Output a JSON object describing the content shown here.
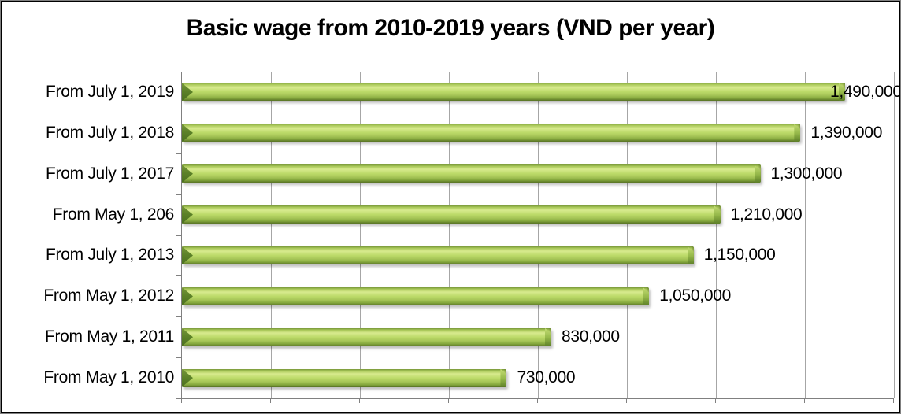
{
  "chart_data": {
    "type": "bar",
    "orientation": "horizontal",
    "title": "Basic wage from 2010-2019 years (VND per year)",
    "categories": [
      "From July 1, 2019",
      "From July 1, 2018",
      "From July 1, 2017",
      "From May 1, 206",
      "From July 1, 2013",
      "From May 1, 2012",
      "From May 1, 2011",
      "From May 1, 2010"
    ],
    "values": [
      1490000,
      1390000,
      1300000,
      1210000,
      1150000,
      1050000,
      830000,
      730000
    ],
    "value_labels": [
      "1,490,000",
      "1,390,000",
      "1,300,000",
      "1,210,000",
      "1,150,000",
      "1,050,000",
      "830,000",
      "730,000"
    ],
    "xlabel": "",
    "ylabel": "",
    "xlim": [
      0,
      1600000
    ],
    "grid_interval": 200000,
    "grid": true,
    "legend": false,
    "data_labels": true,
    "colors": {
      "bar_top": "#7b9a3c",
      "bar_main": "#a9c859",
      "bar_highlight": "#d8ea8e",
      "bar_mid": "#bcda69",
      "bar_shade": "#85a83e",
      "bar_dark": "#647f2d",
      "bar_cap": "#4b7020",
      "grid": "#a6a6a6",
      "axis": "#808080",
      "text": "#000000"
    }
  }
}
